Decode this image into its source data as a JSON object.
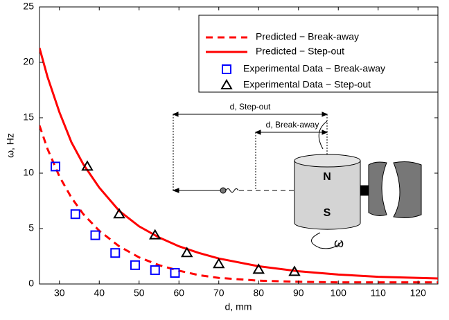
{
  "chart_data": {
    "type": "line",
    "xlabel": "d, mm",
    "ylabel": "ω, Hz",
    "xlim": [
      25,
      125
    ],
    "xticks": [
      30,
      40,
      50,
      60,
      70,
      80,
      90,
      100,
      110,
      120
    ],
    "ylim": [
      0,
      25
    ],
    "yticks": [
      0,
      5,
      10,
      15,
      20,
      25
    ],
    "grid": false,
    "legend": "upper right",
    "series": [
      {
        "name": "Predicted − Break-away",
        "color": "#ff0000",
        "style": "dashed",
        "x": [
          25,
          27,
          30,
          33,
          36,
          40,
          45,
          50,
          55,
          60,
          65,
          70,
          80,
          90,
          100,
          125
        ],
        "values": [
          14.3,
          12.2,
          9.7,
          7.8,
          6.3,
          4.8,
          3.4,
          2.4,
          1.7,
          1.2,
          0.8,
          0.55,
          0.3,
          0.2,
          0.15,
          0.15
        ]
      },
      {
        "name": "Predicted − Step-out",
        "color": "#ff0000",
        "style": "solid",
        "x": [
          25,
          27,
          30,
          33,
          36,
          40,
          45,
          50,
          55,
          60,
          65,
          70,
          80,
          90,
          100,
          110,
          125
        ],
        "values": [
          21.3,
          18.7,
          15.5,
          12.8,
          10.8,
          8.7,
          6.6,
          5.2,
          4.2,
          3.4,
          2.8,
          2.3,
          1.6,
          1.15,
          0.85,
          0.65,
          0.5
        ]
      },
      {
        "name": "Experimental Data − Break-away",
        "color": "#0000ff",
        "style": "marker",
        "marker": "square",
        "x": [
          29,
          34,
          39,
          44,
          49,
          54,
          59
        ],
        "values": [
          10.6,
          6.3,
          4.4,
          2.8,
          1.7,
          1.25,
          1.0
        ]
      },
      {
        "name": "Experimental Data − Step-out",
        "color": "#000000",
        "style": "marker",
        "marker": "triangle",
        "x": [
          37,
          45,
          54,
          62,
          70,
          80,
          89
        ],
        "values": [
          10.6,
          6.3,
          4.4,
          2.8,
          1.8,
          1.3,
          1.1
        ]
      }
    ],
    "annotations": [
      "d, Step-out",
      "d, Break-away",
      "N",
      "S",
      "ω"
    ]
  }
}
